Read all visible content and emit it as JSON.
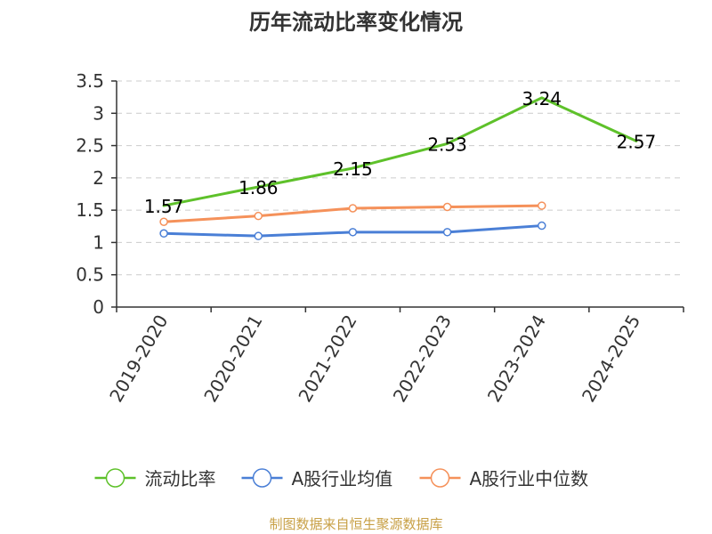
{
  "chart_data": {
    "type": "line",
    "title": "历年流动比率变化情况",
    "categories": [
      "2019-2020",
      "2020-2021",
      "2021-2022",
      "2022-2023",
      "2023-2024",
      "2024-2025"
    ],
    "ylim": [
      0,
      3.5
    ],
    "yticks": [
      "0",
      "0.5",
      "1",
      "1.5",
      "2",
      "2.5",
      "3",
      "3.5"
    ],
    "grid": true,
    "legend_position": "bottom",
    "series": [
      {
        "name": "流动比率",
        "color": "#5ec12a",
        "values": [
          1.57,
          1.86,
          2.15,
          2.53,
          3.24,
          2.57
        ],
        "labels": [
          "1.57",
          "1.86",
          "2.15",
          "2.53",
          "3.24",
          "2.57"
        ]
      },
      {
        "name": "A股行业均值",
        "color": "#4a7fd6",
        "values": [
          1.14,
          1.1,
          1.16,
          1.16,
          1.26,
          null
        ]
      },
      {
        "name": "A股行业中位数",
        "color": "#f5915a",
        "values": [
          1.32,
          1.41,
          1.53,
          1.55,
          1.57,
          null
        ]
      }
    ],
    "source": "制图数据来自恒生聚源数据库"
  }
}
